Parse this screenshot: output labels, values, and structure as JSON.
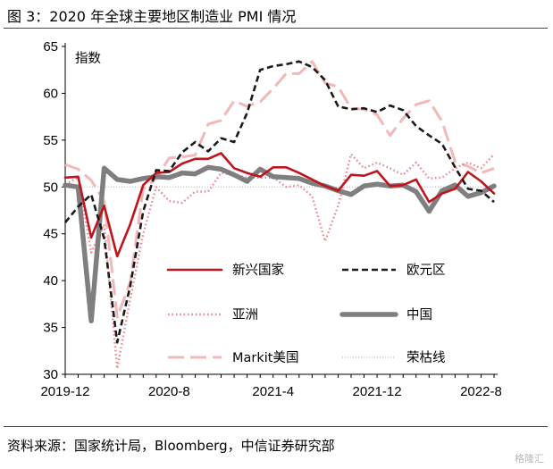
{
  "header": {
    "title": "图 3：2020 年全球主要地区制造业 PMI 情况"
  },
  "footer": {
    "source": "资料来源：国家统计局，Bloomberg，中信证券研究部",
    "watermark": "格隆汇"
  },
  "chart_data": {
    "type": "line",
    "title": "",
    "unit_label": "指数",
    "xlabel": "",
    "ylabel": "",
    "ylim": [
      30,
      65
    ],
    "yticks": [
      30,
      35,
      40,
      45,
      50,
      55,
      60,
      65
    ],
    "x_range": [
      "2019-12",
      "2022-09"
    ],
    "x_tick_labels": [
      "2019-12",
      "2020-8",
      "2021-4",
      "2021-12",
      "2022-8"
    ],
    "x": [
      "2019-12",
      "2020-01",
      "2020-02",
      "2020-03",
      "2020-04",
      "2020-05",
      "2020-06",
      "2020-07",
      "2020-08",
      "2020-09",
      "2020-10",
      "2020-11",
      "2020-12",
      "2021-01",
      "2021-02",
      "2021-03",
      "2021-04",
      "2021-05",
      "2021-06",
      "2021-07",
      "2021-08",
      "2021-09",
      "2021-10",
      "2021-11",
      "2021-12",
      "2022-01",
      "2022-02",
      "2022-03",
      "2022-04",
      "2022-05",
      "2022-06",
      "2022-07",
      "2022-08",
      "2022-09"
    ],
    "series": [
      {
        "name": "新兴国家",
        "color": "#c0141c",
        "style": "solid",
        "width": 2.6,
        "values": [
          51.0,
          51.1,
          44.6,
          48.0,
          42.6,
          46.0,
          50.2,
          51.5,
          51.6,
          52.5,
          53.0,
          53.0,
          53.6,
          52.0,
          51.5,
          51.1,
          52.1,
          52.1,
          51.5,
          50.8,
          50.1,
          49.6,
          51.3,
          51.2,
          51.7,
          50.1,
          50.2,
          50.8,
          48.4,
          49.3,
          49.8,
          51.6,
          50.6,
          49.3
        ]
      },
      {
        "name": "欧元区",
        "color": "#1a1a1a",
        "style": "dashed",
        "width": 2.6,
        "values": [
          46.2,
          47.9,
          49.2,
          44.5,
          33.4,
          39.4,
          47.4,
          51.8,
          51.7,
          53.7,
          54.8,
          53.8,
          55.2,
          54.8,
          57.9,
          62.5,
          62.9,
          63.1,
          63.4,
          62.8,
          61.4,
          58.6,
          58.3,
          58.4,
          58.0,
          58.7,
          58.2,
          56.5,
          55.5,
          54.6,
          52.1,
          49.8,
          49.6,
          48.4
        ]
      },
      {
        "name": "亚洲",
        "color": "#e88a94",
        "style": "dotted",
        "width": 2.4,
        "values": [
          50.3,
          51.0,
          43.0,
          46.0,
          30.6,
          38.0,
          45.0,
          50.0,
          48.5,
          48.3,
          49.5,
          49.5,
          51.5,
          51.3,
          51.0,
          51.0,
          51.0,
          50.0,
          50.2,
          49.0,
          44.2,
          48.0,
          53.5,
          52.0,
          52.6,
          52.0,
          51.3,
          52.6,
          50.9,
          51.0,
          52.0,
          52.6,
          52.0,
          53.5
        ]
      },
      {
        "name": "中国",
        "color": "#7f7f7f",
        "style": "solid",
        "width": 5.5,
        "values": [
          50.2,
          50.0,
          35.7,
          52.0,
          50.8,
          50.6,
          50.9,
          51.1,
          51.0,
          51.5,
          51.4,
          52.1,
          51.9,
          51.3,
          50.6,
          51.9,
          51.1,
          51.0,
          50.9,
          50.4,
          50.1,
          49.6,
          49.2,
          50.1,
          50.3,
          50.1,
          50.2,
          49.5,
          47.4,
          49.6,
          50.2,
          49.0,
          49.4,
          50.1
        ]
      },
      {
        "name": "Markit美国",
        "color": "#f2b8b8",
        "style": "longdash",
        "width": 3.0,
        "values": [
          52.4,
          51.9,
          50.7,
          48.5,
          36.1,
          39.8,
          49.8,
          50.9,
          53.1,
          53.2,
          53.4,
          56.7,
          57.1,
          59.2,
          58.6,
          59.1,
          60.5,
          62.1,
          62.1,
          63.4,
          61.1,
          60.7,
          58.4,
          58.3,
          57.7,
          55.5,
          57.3,
          58.8,
          59.2,
          57.0,
          52.7,
          52.2,
          51.5,
          52.0
        ]
      },
      {
        "name": "荣枯线",
        "color": "#b0b0b0",
        "style": "hairdot",
        "width": 1.0,
        "values": [
          50,
          50,
          50,
          50,
          50,
          50,
          50,
          50,
          50,
          50,
          50,
          50,
          50,
          50,
          50,
          50,
          50,
          50,
          50,
          50,
          50,
          50,
          50,
          50,
          50,
          50,
          50,
          50,
          50,
          50,
          50,
          50,
          50,
          50
        ]
      }
    ],
    "legend_order": [
      "新兴国家",
      "欧元区",
      "亚洲",
      "中国",
      "Markit美国",
      "荣枯线"
    ],
    "legend_position": "bottom-center, inside plot, two columns",
    "grid": false
  }
}
